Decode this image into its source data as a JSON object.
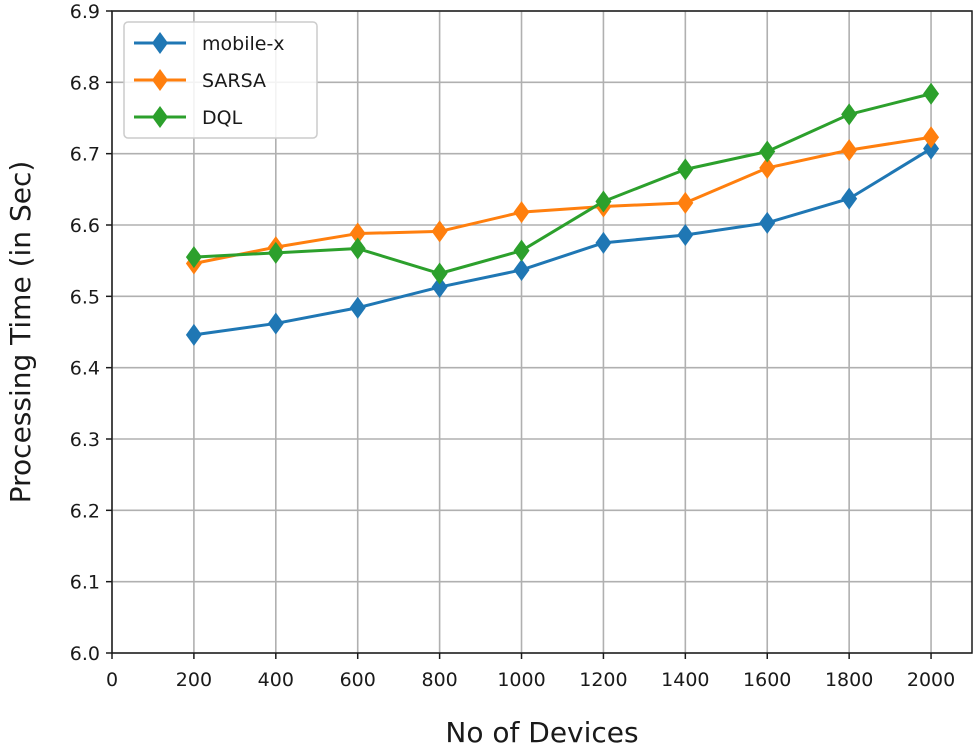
{
  "chart_data": {
    "type": "line",
    "title": "",
    "xlabel": "No of Devices",
    "ylabel": "Processing Time (in Sec)",
    "xlim": [
      0,
      2100
    ],
    "ylim": [
      6.0,
      6.9
    ],
    "xticks": [
      0,
      200,
      400,
      600,
      800,
      1000,
      1200,
      1400,
      1600,
      1800,
      2000
    ],
    "yticks": [
      6.0,
      6.1,
      6.2,
      6.3,
      6.4,
      6.5,
      6.6,
      6.7,
      6.8,
      6.9
    ],
    "x": [
      200,
      400,
      600,
      800,
      1000,
      1200,
      1400,
      1600,
      1800,
      2000
    ],
    "grid": true,
    "legend_position": "top-left",
    "series": [
      {
        "name": "mobile-x",
        "color": "#1f77b4",
        "values": [
          6.446,
          6.462,
          6.484,
          6.513,
          6.537,
          6.575,
          6.586,
          6.603,
          6.637,
          6.707
        ]
      },
      {
        "name": "SARSA",
        "color": "#ff7f0e",
        "values": [
          6.546,
          6.569,
          6.588,
          6.591,
          6.618,
          6.626,
          6.631,
          6.68,
          6.705,
          6.723
        ]
      },
      {
        "name": "DQL",
        "color": "#2ca02c",
        "values": [
          6.555,
          6.561,
          6.567,
          6.532,
          6.564,
          6.633,
          6.678,
          6.703,
          6.755,
          6.784
        ]
      }
    ]
  }
}
